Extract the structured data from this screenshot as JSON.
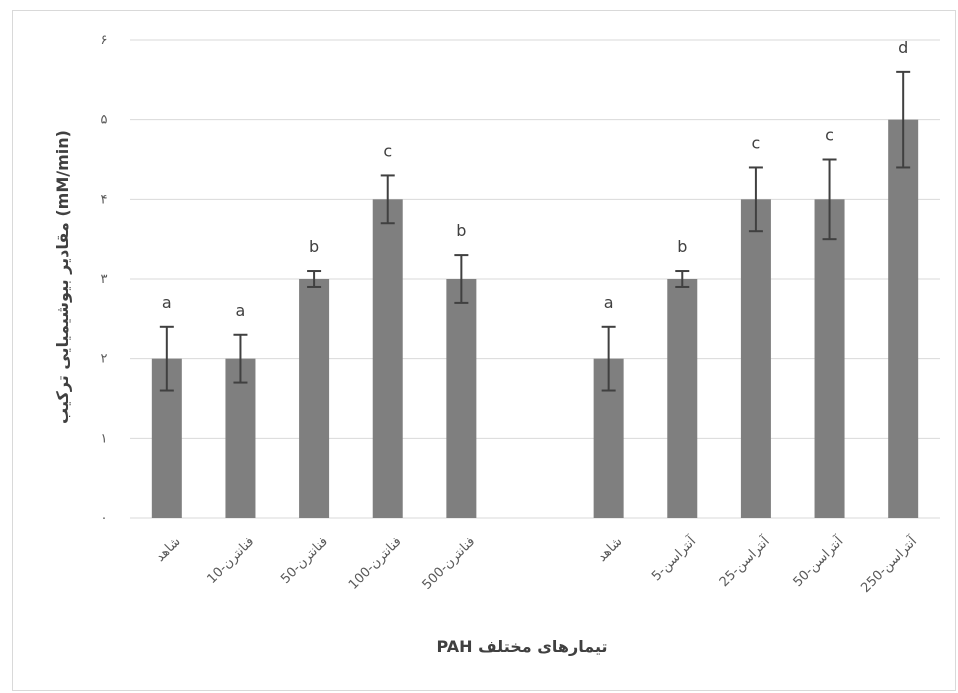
{
  "chart_data": {
    "type": "bar",
    "title": "",
    "xlabel": "تیمارهای مختلف PAH",
    "ylabel": "مقادیر بیوشیمیایی ترکیب (mM/min)",
    "ylim": [
      0,
      6
    ],
    "yticks": [
      "۰",
      "۱",
      "۲",
      "۳",
      "۴",
      "۵",
      "۶"
    ],
    "grid": true,
    "categories": [
      "شاهد",
      "فنانترن-10",
      "فنانترن-50",
      "فنانترن-100",
      "فنانترن-500",
      "",
      "شاهد",
      "آنتراسن-5",
      "آنتراسن-25",
      "آنتراسن-50",
      "آنتراسن-250"
    ],
    "values": [
      2,
      2,
      3,
      4,
      3,
      null,
      2,
      3,
      4,
      4,
      5
    ],
    "error_low": [
      1.6,
      1.7,
      2.9,
      3.7,
      2.7,
      null,
      1.6,
      2.9,
      3.6,
      3.5,
      4.4
    ],
    "error_high": [
      2.4,
      2.3,
      3.1,
      4.3,
      3.3,
      null,
      2.4,
      3.1,
      4.4,
      4.5,
      5.6
    ],
    "significance": [
      "a",
      "a",
      "b",
      "c",
      "b",
      "",
      "a",
      "b",
      "c",
      "c",
      "d"
    ],
    "bar_color": "#7f7f7f",
    "error_color": "#404040",
    "grid_color": "#d9d9d9"
  }
}
